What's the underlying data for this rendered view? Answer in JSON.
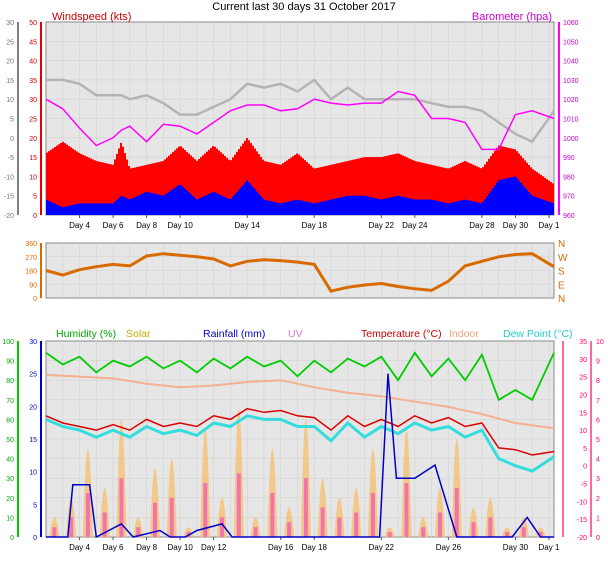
{
  "title": "Current last 30 days 31 October 2017",
  "colors": {
    "wind": "#ff0000",
    "gust": "#ff0000",
    "avgwind": "#0000ff",
    "baro": "#ff00ff",
    "winddir": "#d96a00",
    "humidity": "#00cc00",
    "solar": "#e0c000",
    "rainfall": "#0000cc",
    "uv": "#dd77dd",
    "temperature": "#dd0000",
    "indoor": "#f4b090",
    "dewpoint": "#33dddd",
    "rain_axis": "#0000cc",
    "temp_axis": "#ff0066"
  },
  "chart_data": [
    {
      "type": "line",
      "name": "wind-baro",
      "left_label": "Windspeed (kts)",
      "right_label": "Barometer (hpa)",
      "left_ticks": [
        "50",
        "45",
        "40",
        "35",
        "30",
        "25",
        "20",
        "15",
        "10",
        "5",
        "0"
      ],
      "far_left_ticks": [
        "30",
        "25",
        "20",
        "15",
        "10",
        "5",
        "0",
        "-5",
        "-10",
        "-15",
        "-20"
      ],
      "right_ticks": [
        "1060",
        "1050",
        "1040",
        "1030",
        "1020",
        "1010",
        "1000",
        "990",
        "980",
        "970",
        "960"
      ],
      "ylim_wind": [
        0,
        50
      ],
      "ylim_baro": [
        960,
        1060
      ],
      "x_ticks": [
        "Day 4",
        "Day 6",
        "Day 8",
        "Day 10",
        "Day 14",
        "Day 18",
        "Day 22",
        "Day 24",
        "Day 28",
        "Day 30",
        "Day 1"
      ],
      "x_tick_days": [
        4,
        6,
        8,
        10,
        14,
        18,
        22,
        24,
        28,
        30,
        32
      ],
      "series": [
        {
          "name": "gust",
          "x": [
            2.0,
            3,
            4,
            5,
            6,
            6.5,
            7,
            8,
            9,
            10,
            11,
            12,
            13,
            14,
            15,
            16,
            17,
            18,
            19,
            20,
            21,
            22,
            23,
            24,
            25,
            26,
            27,
            28,
            29,
            30,
            31,
            32.3
          ],
          "values": [
            16,
            19,
            16,
            14,
            13,
            19,
            12,
            13,
            14,
            18,
            14,
            18,
            14,
            20,
            14,
            13,
            16,
            12,
            13,
            14,
            15,
            15,
            16,
            14,
            13,
            12,
            14,
            12,
            18,
            17,
            12,
            8
          ]
        },
        {
          "name": "average",
          "x": [
            2.0,
            3,
            4,
            5,
            6,
            6.5,
            7,
            8,
            9,
            10,
            11,
            12,
            13,
            14,
            15,
            16,
            17,
            18,
            19,
            20,
            21,
            22,
            23,
            24,
            25,
            26,
            27,
            28,
            29,
            30,
            31,
            32.3
          ],
          "values": [
            4,
            2,
            3,
            3,
            3,
            5,
            4,
            6,
            5,
            8,
            4,
            6,
            4,
            9,
            4,
            3,
            4,
            3,
            4,
            5,
            5,
            4,
            5,
            4,
            4,
            3,
            4,
            3,
            9,
            10,
            5,
            3
          ]
        },
        {
          "name": "gray-line",
          "x": [
            2.0,
            3,
            4,
            5,
            6,
            6.5,
            7,
            8,
            9,
            10,
            11,
            12,
            13,
            14,
            15,
            16,
            17,
            18,
            19,
            20,
            21,
            22,
            23,
            24,
            25,
            26,
            27,
            28,
            29,
            30,
            31,
            32.3
          ],
          "values": [
            35,
            35,
            34,
            31,
            31,
            31,
            30,
            31,
            29,
            26,
            26,
            28,
            30,
            34,
            33,
            34,
            32,
            35,
            30,
            33,
            30,
            30,
            30,
            30,
            29,
            28,
            28,
            27,
            24,
            21,
            19,
            27
          ]
        },
        {
          "name": "barometer",
          "x": [
            2.0,
            3,
            4,
            5,
            6,
            6.5,
            7,
            8,
            9,
            10,
            11,
            12,
            13,
            14,
            15,
            16,
            17,
            18,
            19,
            20,
            21,
            22,
            23,
            24,
            25,
            26,
            27,
            28,
            29,
            30,
            31,
            32.3
          ],
          "values": [
            1020,
            1015,
            1005,
            996,
            1000,
            1004,
            1006,
            998,
            1007,
            1006,
            1002,
            1008,
            1014,
            1017,
            1017,
            1014,
            1015,
            1020,
            1018,
            1017,
            1018,
            1018,
            1024,
            1022,
            1010,
            1010,
            1008,
            994,
            994,
            1012,
            1014,
            1010
          ]
        }
      ]
    },
    {
      "type": "line",
      "name": "wind-direction",
      "left_ticks": [
        "360",
        "270",
        "180",
        "90",
        "0"
      ],
      "right_ticks": [
        "N",
        "W",
        "S",
        "E",
        "N"
      ],
      "ylim": [
        0,
        360
      ],
      "series": [
        {
          "name": "direction",
          "x": [
            2.0,
            3,
            4,
            5,
            6,
            7,
            8,
            9,
            10,
            11,
            12,
            13,
            14,
            15,
            16,
            17,
            18,
            19,
            20,
            21,
            22,
            23,
            24,
            25,
            26,
            27,
            28,
            29,
            30,
            31,
            32.3
          ],
          "values": [
            180,
            150,
            185,
            205,
            220,
            210,
            275,
            290,
            280,
            270,
            255,
            210,
            240,
            250,
            245,
            235,
            220,
            45,
            70,
            85,
            95,
            75,
            60,
            50,
            110,
            210,
            240,
            270,
            285,
            290,
            205
          ]
        }
      ]
    },
    {
      "type": "line",
      "name": "humidity-temp-rain",
      "labels": [
        "Humidity (%)",
        "Solar",
        "Rainfall (mm)",
        "UV",
        "Temperature (°C)",
        "Indoor",
        "Dew Point (°C)"
      ],
      "humidity_ticks": [
        "100",
        "90",
        "80",
        "70",
        "60",
        "50",
        "40",
        "30",
        "20",
        "10",
        "0"
      ],
      "rain_ticks": [
        "30",
        "25",
        "20",
        "15",
        "10",
        "5",
        "0"
      ],
      "temp_ticks": [
        "35",
        "30",
        "25",
        "20",
        "15",
        "10",
        "5",
        "0",
        "-5",
        "-10",
        "-15",
        "-20"
      ],
      "uv_ticks": [
        "10",
        "9",
        "8",
        "7",
        "6",
        "5",
        "4",
        "3",
        "2",
        "1",
        "0"
      ],
      "ylim_humidity": [
        0,
        100
      ],
      "ylim_rain": [
        0,
        30
      ],
      "ylim_temp": [
        -20,
        35
      ],
      "x_ticks": [
        "Day 4",
        "Day 6",
        "Day 8",
        "Day 10",
        "Day 12",
        "Day 16",
        "Day 18",
        "Day 22",
        "Day 26",
        "Day 30",
        "Day 1"
      ],
      "x_tick_days": [
        4,
        6,
        8,
        10,
        12,
        16,
        18,
        22,
        26,
        30,
        32
      ],
      "series": [
        {
          "name": "humidity",
          "x": [
            2.0,
            3,
            4,
            5,
            6,
            7,
            8,
            9,
            10,
            11,
            12,
            13,
            14,
            15,
            16,
            17,
            18,
            19,
            20,
            21,
            22,
            23,
            24,
            25,
            26,
            27,
            28,
            29,
            30,
            31,
            32.3
          ],
          "values": [
            94,
            88,
            92,
            84,
            90,
            87,
            92,
            86,
            90,
            84,
            91,
            86,
            92,
            87,
            90,
            82,
            90,
            84,
            91,
            87,
            92,
            80,
            94,
            82,
            91,
            80,
            93,
            70,
            75,
            70,
            94
          ]
        },
        {
          "name": "indoor",
          "x": [
            2.0,
            4,
            6,
            8,
            10,
            12,
            14,
            16,
            18,
            20,
            22,
            24,
            26,
            28,
            30,
            32.3
          ],
          "values": [
            25.5,
            25,
            24.5,
            23,
            22,
            22.5,
            23.5,
            24,
            22,
            20.5,
            19.5,
            18,
            16.5,
            14.5,
            12,
            10.5
          ]
        },
        {
          "name": "temperature",
          "x": [
            2.0,
            3,
            4,
            5,
            6,
            7,
            8,
            9,
            10,
            11,
            12,
            13,
            14,
            15,
            16,
            17,
            18,
            19,
            20,
            21,
            22,
            23,
            24,
            25,
            26,
            27,
            28,
            29,
            30,
            31,
            32.3
          ],
          "values": [
            14,
            12,
            11,
            10,
            11.5,
            10,
            13,
            11,
            12,
            11,
            14,
            13,
            16,
            15,
            15.5,
            14,
            13.5,
            10,
            14,
            11,
            13,
            11,
            14,
            12,
            13.5,
            11,
            12,
            5,
            4.5,
            3,
            4
          ]
        },
        {
          "name": "dewpoint",
          "x": [
            2.0,
            3,
            4,
            5,
            6,
            7,
            8,
            9,
            10,
            11,
            12,
            13,
            14,
            15,
            16,
            17,
            18,
            19,
            20,
            21,
            22,
            23,
            24,
            25,
            26,
            27,
            28,
            29,
            30,
            31,
            32.3
          ],
          "values": [
            13,
            11,
            10,
            8,
            10,
            8,
            11,
            9,
            10,
            8.5,
            12,
            11,
            14,
            13,
            13,
            11,
            11,
            7,
            12,
            8,
            11,
            9,
            12,
            10,
            11,
            8,
            10,
            2,
            0,
            -1.5,
            2.5
          ]
        },
        {
          "name": "rainfall",
          "x": [
            2.0,
            3.3,
            3.6,
            4.6,
            5.0,
            6.5,
            7.2,
            8.8,
            9.4,
            10.3,
            11.0,
            12.5,
            13.1,
            14.0,
            18.5,
            18.9,
            21.9,
            22.4,
            22.9,
            24.0,
            25.2,
            26.5,
            27.5,
            29.8,
            30.7,
            31.5,
            32.3
          ],
          "values": [
            0,
            0,
            8,
            8,
            0,
            2,
            0,
            1,
            0,
            0,
            1,
            2,
            0,
            0,
            0,
            0,
            0,
            25,
            9,
            9,
            11,
            0,
            0,
            0,
            3,
            0,
            0
          ]
        },
        {
          "name": "solar",
          "x": [
            2.5,
            3.5,
            4.5,
            5.5,
            6.5,
            7.5,
            8.5,
            9.5,
            10.5,
            11.5,
            12.5,
            13.5,
            14.5,
            15.5,
            16.5,
            17.5,
            18.5,
            19.5,
            20.5,
            21.5,
            22.5,
            23.5,
            24.5,
            25.5,
            26.5,
            27.5,
            28.5,
            29.5,
            30.5,
            31.5
          ],
          "values": [
            10,
            20,
            45,
            25,
            60,
            10,
            35,
            40,
            5,
            55,
            20,
            65,
            10,
            45,
            15,
            60,
            30,
            20,
            25,
            45,
            5,
            55,
            10,
            25,
            50,
            15,
            20,
            5,
            10,
            5
          ]
        }
      ]
    }
  ]
}
